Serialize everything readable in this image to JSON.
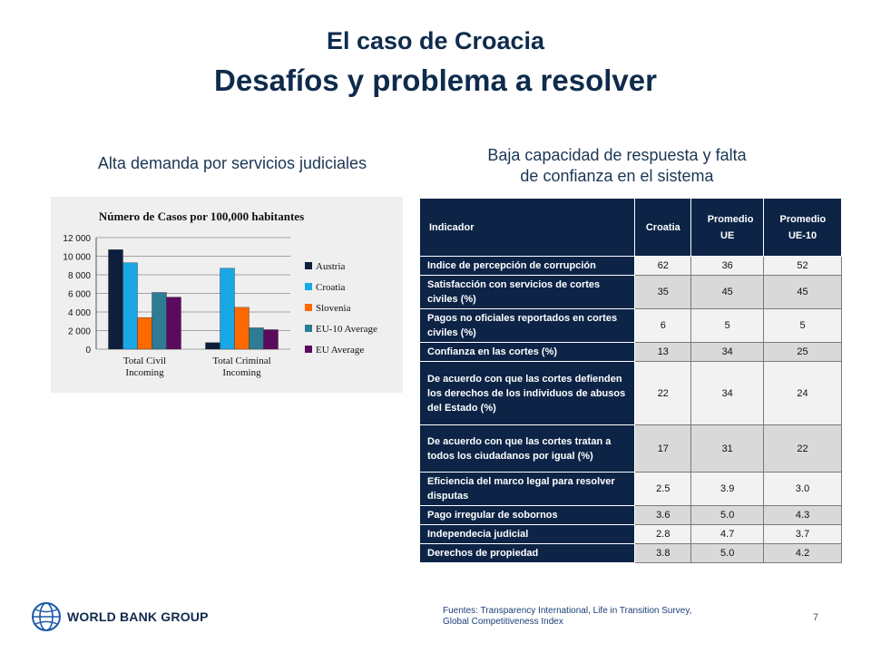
{
  "header": {
    "title": "El caso de Croacia",
    "subtitle": "Desafíos y problema a resolver"
  },
  "left": {
    "heading": "Alta demanda por servicios judiciales"
  },
  "right": {
    "heading_line1": "Baja capacidad de respuesta y falta",
    "heading_line2": "de confianza en el sistema"
  },
  "chart_data": {
    "type": "bar",
    "title": "Número de Casos por 100,000 habitantes",
    "categories": [
      [
        "Total Civil",
        "Incoming"
      ],
      [
        "Total Criminal",
        "Incoming"
      ]
    ],
    "ylim": [
      0,
      12000
    ],
    "yticks": [
      0,
      2000,
      4000,
      6000,
      8000,
      10000,
      12000
    ],
    "ytick_labels": [
      "0",
      "2 000",
      "4 000",
      "6 000",
      "8 000",
      "10 000",
      "12 000"
    ],
    "grid": true,
    "legend_position": "right",
    "series": [
      {
        "name": "Austria",
        "color": "#0d1f3c",
        "values": [
          10700,
          700
        ]
      },
      {
        "name": "Croatia",
        "color": "#1aa7e6",
        "values": [
          9300,
          8700
        ]
      },
      {
        "name": "Slovenia",
        "color": "#ff6a00",
        "values": [
          3400,
          4500
        ]
      },
      {
        "name": "EU-10 Average",
        "color": "#2d7b94",
        "values": [
          6100,
          2300
        ]
      },
      {
        "name": "EU Average",
        "color": "#5b0b5e",
        "values": [
          5600,
          2100
        ]
      }
    ]
  },
  "table": {
    "headers": [
      "Indicador",
      "Croatia",
      "Promedio UE",
      "Promedio UE-10"
    ],
    "rows": [
      {
        "label": "Indice de percepción de corrupción",
        "values": [
          "62",
          "36",
          "52"
        ]
      },
      {
        "label": "Satisfacción con servicios de cortes civiles (%)",
        "values": [
          "35",
          "45",
          "45"
        ]
      },
      {
        "label": "Pagos no oficiales reportados en cortes civiles (%)",
        "values": [
          "6",
          "5",
          "5"
        ]
      },
      {
        "label": "Confianza en las cortes (%)",
        "values": [
          "13",
          "34",
          "25"
        ]
      },
      {
        "label": "De acuerdo con que las cortes defienden los derechos de los individuos de abusos del Estado (%)",
        "values": [
          "22",
          "34",
          "24"
        ]
      },
      {
        "label": "De acuerdo con que las cortes tratan a todos los ciudadanos por igual (%)",
        "values": [
          "17",
          "31",
          "22"
        ]
      },
      {
        "label": "Eficiencia del marco legal para resolver disputas",
        "values": [
          "2.5",
          "3.9",
          "3.0"
        ]
      },
      {
        "label": "Pago irregular de sobornos",
        "values": [
          "3.6",
          "5.0",
          "4.3"
        ]
      },
      {
        "label": "Independecia judicial",
        "values": [
          "2.8",
          "4.7",
          "3.7"
        ]
      },
      {
        "label": "Derechos de propiedad",
        "values": [
          "3.8",
          "5.0",
          "4.2"
        ]
      }
    ]
  },
  "footer": {
    "sources_line1": "Fuentes: Transparency International, Life in Transition Survey,",
    "sources_line2": "Global Competitiveness Index",
    "page_number": "7",
    "logo_text": "WORLD BANK GROUP",
    "logo_icon": "globe-icon"
  }
}
